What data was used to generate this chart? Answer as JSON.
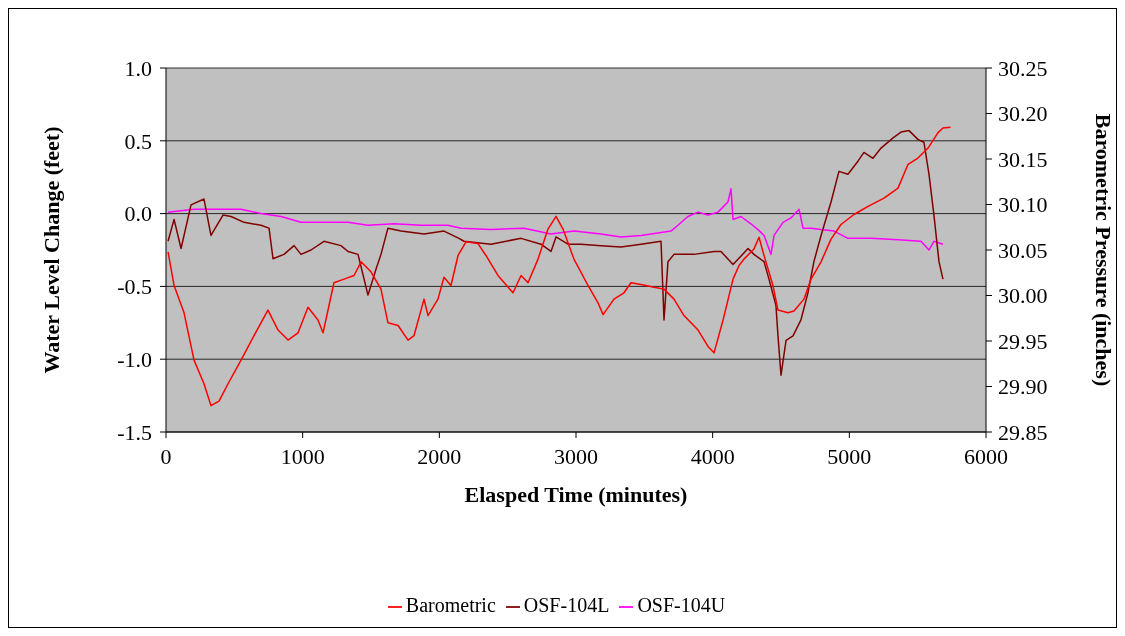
{
  "chart_data": {
    "type": "line",
    "xlabel": "Elasped Time (minutes)",
    "ylabel": "Water Level Change (feet)",
    "y2label": "Barometric Pressure (inches)",
    "xlim": [
      0,
      6000
    ],
    "xticks": [
      0,
      1000,
      2000,
      3000,
      4000,
      5000,
      6000
    ],
    "ylim": [
      -1.5,
      1.0
    ],
    "yticks": [
      {
        "value": -1.5,
        "label": "-1.5"
      },
      {
        "value": -1.0,
        "label": "-1.0"
      },
      {
        "value": -0.5,
        "label": "-0.5"
      },
      {
        "value": 0,
        "label": "0.0"
      },
      {
        "value": 0.5,
        "label": "0.5"
      },
      {
        "value": 1.0,
        "label": "1.0"
      }
    ],
    "y2lim": [
      29.85,
      30.25
    ],
    "y2ticks": [
      {
        "value": 29.85,
        "label": "29.85"
      },
      {
        "value": 29.9,
        "label": "29.90"
      },
      {
        "value": 29.95,
        "label": "29.95"
      },
      {
        "value": 30.0,
        "label": "30.00"
      },
      {
        "value": 30.05,
        "label": "30.05"
      },
      {
        "value": 30.1,
        "label": "30.10"
      },
      {
        "value": 30.15,
        "label": "30.15"
      },
      {
        "value": 30.2,
        "label": "30.20"
      },
      {
        "value": 30.25,
        "label": "30.25"
      }
    ],
    "grid": "y",
    "legend": "bottom",
    "marker": "none",
    "line_style": "solid",
    "series": [
      {
        "name": "OSF-104U",
        "color": "#ff00ff",
        "x": [
          15,
          205,
          402,
          549,
          695,
          842,
          988,
          1185,
          1332,
          1478,
          1668,
          1866,
          2063,
          2159,
          2378,
          2620,
          2817,
          2985,
          3183,
          3329,
          3476,
          3695,
          3746,
          3819,
          3893,
          3966,
          4039,
          4112,
          4134,
          4149,
          4207,
          4280,
          4332,
          4376,
          4427,
          4449,
          4515,
          4573,
          4632,
          4661,
          4720,
          4793,
          4888,
          4990,
          5159,
          5356,
          5524,
          5583,
          5619,
          5685
        ],
        "values": [
          0.01,
          0.03,
          0.03,
          0.03,
          0,
          -0.02,
          -0.06,
          -0.06,
          -0.06,
          -0.08,
          -0.07,
          -0.08,
          -0.08,
          -0.1,
          -0.11,
          -0.1,
          -0.14,
          -0.12,
          -0.14,
          -0.16,
          -0.15,
          -0.12,
          -0.08,
          -0.02,
          0.01,
          -0.01,
          0.01,
          0.08,
          0.17,
          -0.04,
          -0.02,
          -0.07,
          -0.11,
          -0.15,
          -0.28,
          -0.15,
          -0.06,
          -0.03,
          0.03,
          -0.1,
          -0.1,
          -0.11,
          -0.12,
          -0.17,
          -0.17,
          -0.18,
          -0.19,
          -0.25,
          -0.19,
          -0.21
        ]
      },
      {
        "name": "OSF-104L",
        "color": "#800000",
        "x": [
          15,
          59,
          110,
          183,
          278,
          329,
          417,
          476,
          571,
          695,
          754,
          783,
          863,
          937,
          988,
          1061,
          1156,
          1280,
          1332,
          1405,
          1478,
          1537,
          1573,
          1624,
          1720,
          1888,
          2034,
          2144,
          2180,
          2378,
          2598,
          2744,
          2817,
          2854,
          2941,
          3037,
          3183,
          3329,
          3476,
          3622,
          3644,
          3673,
          3717,
          3863,
          4010,
          4061,
          4149,
          4259,
          4302,
          4376,
          4412,
          4463,
          4478,
          4500,
          4537,
          4588,
          4646,
          4698,
          4741,
          4793,
          4866,
          4924,
          4990,
          5063,
          5107,
          5173,
          5232,
          5320,
          5378,
          5437,
          5502,
          5546,
          5583,
          5619,
          5656,
          5685
        ],
        "values": [
          -0.19,
          -0.04,
          -0.24,
          0.06,
          0.1,
          -0.15,
          -0.01,
          -0.02,
          -0.06,
          -0.08,
          -0.1,
          -0.31,
          -0.28,
          -0.22,
          -0.28,
          -0.25,
          -0.19,
          -0.22,
          -0.26,
          -0.28,
          -0.56,
          -0.38,
          -0.28,
          -0.1,
          -0.12,
          -0.14,
          -0.12,
          -0.17,
          -0.19,
          -0.21,
          -0.17,
          -0.21,
          -0.26,
          -0.16,
          -0.21,
          -0.21,
          -0.22,
          -0.23,
          -0.21,
          -0.19,
          -0.73,
          -0.33,
          -0.28,
          -0.28,
          -0.26,
          -0.26,
          -0.35,
          -0.24,
          -0.28,
          -0.33,
          -0.45,
          -0.63,
          -0.84,
          -1.11,
          -0.87,
          -0.84,
          -0.73,
          -0.54,
          -0.33,
          -0.15,
          0.08,
          0.29,
          0.27,
          0.36,
          0.42,
          0.38,
          0.45,
          0.52,
          0.56,
          0.57,
          0.51,
          0.49,
          0.27,
          -0.01,
          -0.33,
          -0.45
        ]
      },
      {
        "name": "Barometric",
        "color": "#ff0000",
        "axis": "y2",
        "x": [
          15,
          59,
          132,
          205,
          278,
          329,
          388,
          454,
          549,
          644,
          746,
          820,
          893,
          966,
          1039,
          1112,
          1149,
          1229,
          1303,
          1376,
          1427,
          1500,
          1573,
          1624,
          1698,
          1771,
          1815,
          1888,
          1917,
          1990,
          2034,
          2085,
          2137,
          2195,
          2283,
          2341,
          2429,
          2539,
          2598,
          2649,
          2722,
          2795,
          2854,
          2905,
          2985,
          3088,
          3161,
          3198,
          3278,
          3351,
          3402,
          3476,
          3571,
          3644,
          3717,
          3790,
          3893,
          3966,
          4010,
          4076,
          4149,
          4193,
          4229,
          4302,
          4339,
          4368,
          4441,
          4478,
          4551,
          4595,
          4668,
          4720,
          4793,
          4866,
          4939,
          5034,
          5137,
          5254,
          5356,
          5429,
          5502,
          5576,
          5649,
          5685,
          5740
        ],
        "values": [
          30.048,
          30.011,
          29.981,
          29.929,
          29.903,
          29.879,
          29.884,
          29.903,
          29.929,
          29.956,
          29.984,
          29.962,
          29.951,
          29.959,
          29.987,
          29.973,
          29.959,
          30.014,
          30.018,
          30.022,
          30.037,
          30.026,
          30.007,
          29.97,
          29.967,
          29.951,
          29.956,
          29.996,
          29.978,
          29.996,
          30.02,
          30.011,
          30.044,
          30.059,
          30.057,
          30.044,
          30.022,
          30.003,
          30.022,
          30.014,
          30.04,
          30.073,
          30.087,
          30.073,
          30.04,
          30.011,
          29.992,
          29.979,
          29.996,
          30.003,
          30.014,
          30.012,
          30.009,
          30.007,
          29.996,
          29.978,
          29.962,
          29.944,
          29.937,
          29.973,
          30.018,
          30.033,
          30.04,
          30.051,
          30.064,
          30.048,
          30.011,
          29.984,
          29.981,
          29.983,
          29.996,
          30.018,
          30.037,
          30.062,
          30.078,
          30.089,
          30.098,
          30.107,
          30.118,
          30.144,
          30.151,
          30.162,
          30.179,
          30.184,
          30.185
        ]
      }
    ]
  }
}
